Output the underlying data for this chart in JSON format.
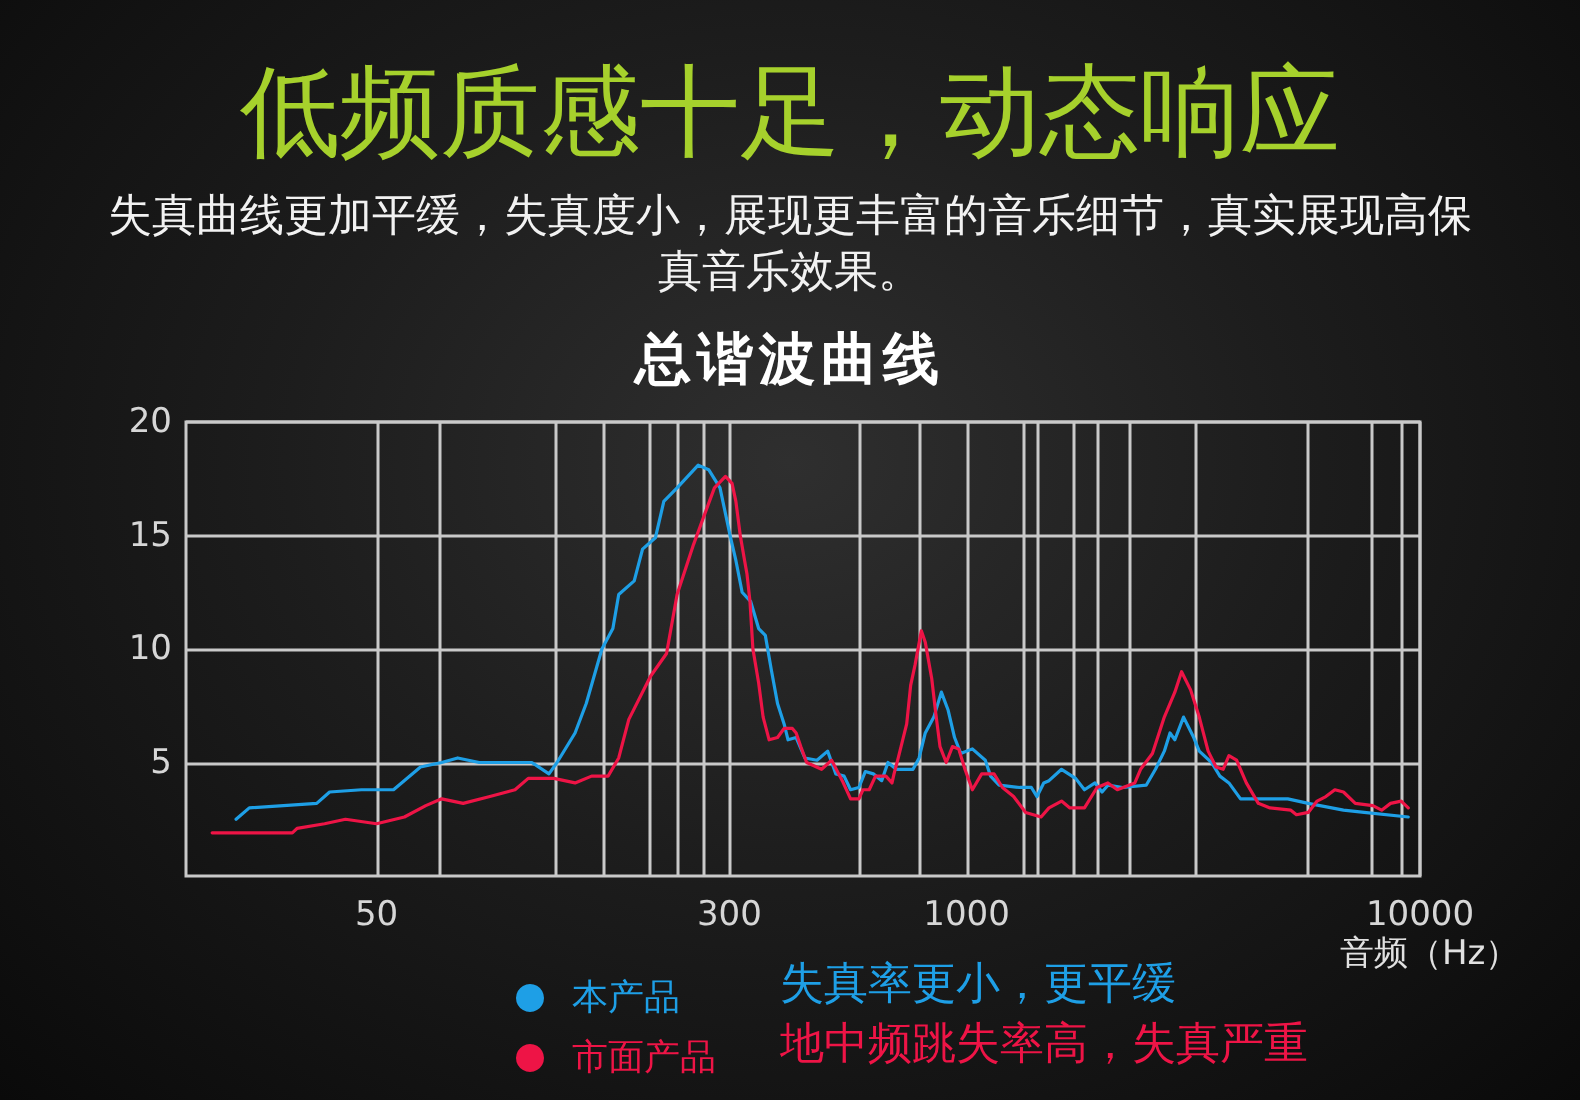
{
  "chart_data": {
    "type": "line",
    "title": "低频质感十足，动态响应",
    "subtitle": "失真曲线更加平缓，失真度小，展现更丰富的音乐细节，真实展现高保真音乐效果。",
    "xlabel": "音频（Hz）",
    "annotations": [
      "总谐波曲线",
      "失真率更小，更平缓",
      "地中频跳失率高，失真严重"
    ],
    "log": "x",
    "grid": true,
    "legend": "bottom",
    "xlim": [
      19,
      10000
    ],
    "xticks": [
      50,
      {
        "value": 69,
        "label": null
      },
      {
        "value": 124,
        "label": null
      },
      {
        "value": 159,
        "label": null
      },
      {
        "value": 200,
        "label": null
      },
      {
        "value": 231,
        "label": null
      },
      {
        "value": 263,
        "label": null
      },
      300,
      {
        "value": 580,
        "label": null
      },
      {
        "value": 786,
        "label": null
      },
      1000,
      {
        "value": 1340,
        "label": null
      },
      {
        "value": 1440,
        "label": null
      },
      {
        "value": 1730,
        "label": null
      },
      {
        "value": 1940,
        "label": null
      },
      {
        "value": 2280,
        "label": null
      },
      {
        "value": 3210,
        "label": null
      },
      {
        "value": 5640,
        "label": null
      },
      {
        "value": 7850,
        "label": null
      },
      {
        "value": 9060,
        "label": null
      },
      10000
    ],
    "ylim": [
      0,
      20
    ],
    "yticks": [
      5,
      10,
      15,
      20
    ],
    "series": [
      {
        "name": "本产品",
        "color": "#1e9fe6",
        "x": [
          24.5,
          26.2,
          36.9,
          39.4,
          46.3,
          54.5,
          62.5,
          69.6,
          75.5,
          84.2,
          110,
          120,
          125,
          137,
          145,
          157,
          166,
          171,
          185,
          193,
          206,
          215,
          230,
          256,
          270,
          286,
          301,
          310,
          320,
          334,
          348,
          360,
          371,
          383,
          396,
          404,
          421,
          440,
          468,
          494,
          515,
          537,
          555,
          579,
          598,
          623,
          650,
          671,
          700,
          762,
          786,
          811,
          847,
          880,
          911,
          941,
          971,
          1030,
          1100,
          1130,
          1180,
          1310,
          1390,
          1430,
          1480,
          1520,
          1620,
          1740,
          1820,
          1920,
          1990,
          2050,
          2210,
          2490,
          2610,
          2730,
          2810,
          2880,
          3010,
          3170,
          3260,
          3470,
          3620,
          3790,
          4020,
          5110,
          5670,
          6780,
          7530,
          9420
        ],
        "values": [
          2.5,
          3.0,
          3.2,
          3.7,
          3.8,
          3.8,
          4.8,
          5.0,
          5.2,
          5.0,
          5.0,
          4.5,
          5.0,
          6.3,
          7.6,
          10.0,
          10.9,
          12.4,
          13.0,
          14.4,
          14.9,
          16.5,
          17.1,
          18.1,
          17.9,
          17.1,
          15.0,
          13.9,
          12.5,
          12.1,
          10.9,
          10.6,
          9.1,
          7.6,
          6.7,
          6.0,
          6.1,
          5.2,
          5.1,
          5.5,
          4.5,
          4.4,
          3.8,
          3.9,
          4.6,
          4.5,
          4.2,
          5.0,
          4.7,
          4.7,
          5.2,
          6.3,
          7.0,
          8.1,
          7.3,
          6.1,
          5.4,
          5.6,
          5.1,
          4.4,
          4.0,
          3.9,
          3.9,
          3.5,
          4.1,
          4.2,
          4.7,
          4.3,
          3.8,
          4.1,
          3.7,
          4.0,
          3.9,
          4.0,
          4.7,
          5.5,
          6.3,
          6.0,
          7.0,
          6.1,
          5.5,
          5.0,
          4.4,
          4.1,
          3.4,
          3.4,
          3.2,
          2.9,
          2.8,
          2.6
        ]
      },
      {
        "name": "市面产品",
        "color": "#ee1446",
        "x": [
          21.7,
          32.6,
          33.4,
          38.4,
          42.7,
          50,
          57.6,
          64.2,
          69.6,
          77.6,
          88.9,
          101,
          108,
          123,
          137,
          149,
          162,
          171,
          180,
          201,
          218,
          230,
          250,
          263,
          278,
          294,
          304,
          310,
          317,
          324,
          328,
          333,
          338,
          348,
          356,
          367,
          383,
          396,
          413,
          421,
          431,
          444,
          479,
          504,
          532,
          555,
          579,
          591,
          610,
          630,
          664,
          685,
          692,
          707,
          738,
          753,
          770,
          795,
          811,
          838,
          855,
          874,
          902,
          931,
          961,
          992,
          1030,
          1080,
          1150,
          1200,
          1270,
          1350,
          1460,
          1520,
          1620,
          1690,
          1820,
          1940,
          2050,
          2150,
          2350,
          2420,
          2570,
          2730,
          2880,
          2980,
          3120,
          3260,
          3410,
          3550,
          3680,
          3790,
          3940,
          4140,
          4400,
          4670,
          5190,
          5340,
          5670,
          5930,
          6200,
          6490,
          6780,
          7200,
          7870,
          8230,
          8610,
          9090,
          9420
        ],
        "values": [
          1.9,
          1.9,
          2.1,
          2.3,
          2.5,
          2.3,
          2.6,
          3.1,
          3.4,
          3.2,
          3.5,
          3.8,
          4.3,
          4.3,
          4.1,
          4.4,
          4.4,
          5.2,
          6.9,
          8.8,
          9.8,
          12.4,
          14.6,
          15.8,
          17.1,
          17.6,
          17.3,
          16.5,
          15.0,
          13.9,
          13.3,
          12.1,
          10.0,
          8.5,
          7.0,
          6.0,
          6.1,
          6.5,
          6.5,
          6.3,
          5.7,
          5.0,
          4.7,
          5.1,
          4.2,
          3.4,
          3.4,
          3.8,
          3.8,
          4.4,
          4.4,
          4.1,
          4.5,
          5.2,
          6.7,
          8.4,
          9.3,
          10.8,
          10.3,
          8.7,
          7.2,
          5.7,
          5.0,
          5.7,
          5.6,
          4.7,
          3.8,
          4.5,
          4.5,
          3.9,
          3.5,
          2.8,
          2.6,
          3.0,
          3.3,
          3.0,
          3.0,
          3.9,
          4.1,
          3.8,
          4.1,
          4.7,
          5.4,
          7.0,
          8.1,
          9.0,
          8.2,
          7.0,
          5.5,
          4.8,
          4.7,
          5.3,
          5.1,
          4.1,
          3.2,
          3.0,
          2.9,
          2.7,
          2.8,
          3.3,
          3.5,
          3.8,
          3.7,
          3.2,
          3.1,
          2.9,
          3.2,
          3.3,
          3.0
        ]
      }
    ]
  }
}
